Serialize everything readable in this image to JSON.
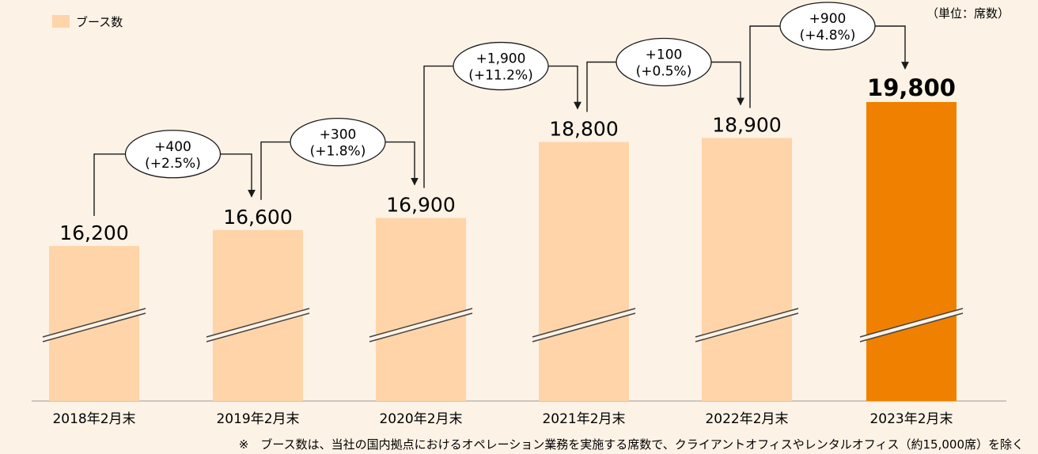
{
  "legend": {
    "label": "ブース数"
  },
  "unit_note": "（単位：席数）",
  "footnote": "※　ブース数は、当社の国内拠点におけるオペレーション業務を実施する席数で、クライアントオフィスやレンタルオフィス（約15,000席）を除く",
  "colors": {
    "bar": "#ffd4a8",
    "highlight": "#f08000",
    "background": "#fdf2e6",
    "text": "#1a1a1a"
  },
  "chart_data": {
    "type": "bar",
    "axis_break": true,
    "categories": [
      "2018年2月末",
      "2019年2月末",
      "2020年2月末",
      "2021年2月末",
      "2022年2月末",
      "2023年2月末"
    ],
    "values": [
      16200,
      16600,
      16900,
      18800,
      18900,
      19800
    ],
    "value_labels": [
      "16,200",
      "16,600",
      "16,900",
      "18,800",
      "18,900",
      "19,800"
    ],
    "highlight_index": 5,
    "changes": [
      {
        "amount": "+400",
        "pct": "(+2.5%)"
      },
      {
        "amount": "+300",
        "pct": "(+1.8%)"
      },
      {
        "amount": "+1,900",
        "pct": "(+11.2%)"
      },
      {
        "amount": "+100",
        "pct": "(+0.5%)"
      },
      {
        "amount": "+900",
        "pct": "(+4.8%)"
      }
    ]
  }
}
